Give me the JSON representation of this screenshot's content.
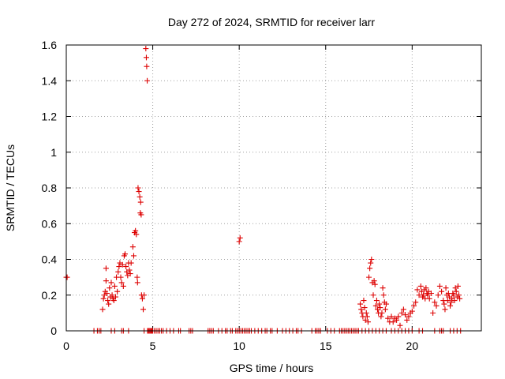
{
  "chart_data": {
    "type": "scatter",
    "title": "Day 272 of 2024, SRMTID for receiver larr",
    "xlabel": "GPS time / hours",
    "ylabel": "SRMTID / TECUs",
    "xlim": [
      0,
      24
    ],
    "ylim": [
      0,
      1.6
    ],
    "xticks": [
      0,
      5,
      10,
      15,
      20
    ],
    "xtick_labels": [
      "0",
      "5",
      "10",
      "15",
      "20"
    ],
    "yticks": [
      0,
      0.2,
      0.4,
      0.6,
      0.8,
      1,
      1.2,
      1.4,
      1.6
    ],
    "ytick_labels": [
      "0",
      "0.2",
      "0.4",
      "0.6",
      "0.8",
      "1",
      "1.2",
      "1.4",
      "1.6"
    ],
    "grid": true,
    "marker": "+",
    "marker_color": "#dd0000",
    "series": [
      {
        "name": "SRMTID",
        "x": [
          0.0,
          0.05,
          2.1,
          2.15,
          2.2,
          2.25,
          2.3,
          2.3,
          2.35,
          2.4,
          2.45,
          2.5,
          2.55,
          2.6,
          2.65,
          2.7,
          2.75,
          2.8,
          2.85,
          2.9,
          2.95,
          3.0,
          3.05,
          3.1,
          3.15,
          3.2,
          3.25,
          3.3,
          3.35,
          3.4,
          3.45,
          3.5,
          3.55,
          3.6,
          3.65,
          3.7,
          3.75,
          3.85,
          3.9,
          3.95,
          4.0,
          4.05,
          4.1,
          4.12,
          4.15,
          4.2,
          4.25,
          4.28,
          4.3,
          4.33,
          4.35,
          4.4,
          4.45,
          4.5,
          4.6,
          4.63,
          4.65,
          4.68,
          10.0,
          10.05,
          17.0,
          17.05,
          17.1,
          17.15,
          17.2,
          17.25,
          17.3,
          17.35,
          17.4,
          17.45,
          17.5,
          17.55,
          17.6,
          17.65,
          17.7,
          17.75,
          17.8,
          17.85,
          17.9,
          17.95,
          18.0,
          18.05,
          18.1,
          18.15,
          18.2,
          18.25,
          18.3,
          18.35,
          18.4,
          18.45,
          18.5,
          18.6,
          18.7,
          18.8,
          18.9,
          19.0,
          19.1,
          19.2,
          19.3,
          19.4,
          19.5,
          19.6,
          19.7,
          19.8,
          19.9,
          20.0,
          20.1,
          20.2,
          20.3,
          20.4,
          20.5,
          20.55,
          20.6,
          20.65,
          20.7,
          20.75,
          20.8,
          20.85,
          20.9,
          20.95,
          21.0,
          21.1,
          21.2,
          21.3,
          21.4,
          21.5,
          21.6,
          21.7,
          21.8,
          21.85,
          21.9,
          21.95,
          22.0,
          22.05,
          22.1,
          22.15,
          22.2,
          22.25,
          22.3,
          22.35,
          22.4,
          22.45,
          22.5,
          22.55,
          22.6,
          22.65,
          22.7,
          22.75,
          1.6,
          1.8,
          1.9,
          2.0,
          2.6,
          2.8,
          3.2,
          3.3,
          3.6,
          4.5,
          4.7,
          4.75,
          4.8,
          4.85,
          4.9,
          4.95,
          5.0,
          5.1,
          5.2,
          5.3,
          5.4,
          5.5,
          5.6,
          5.8,
          6.0,
          6.2,
          6.5,
          6.6,
          7.1,
          7.2,
          7.3,
          8.2,
          8.3,
          8.4,
          8.5,
          8.8,
          9.0,
          9.2,
          9.3,
          9.5,
          9.6,
          9.8,
          9.9,
          10.0,
          10.1,
          10.2,
          10.3,
          10.4,
          10.5,
          10.6,
          10.7,
          10.9,
          11.1,
          11.3,
          11.5,
          11.6,
          11.8,
          11.9,
          12.2,
          12.5,
          12.7,
          12.9,
          13.1,
          13.3,
          13.4,
          13.6,
          14.2,
          14.4,
          14.5,
          14.6,
          14.7,
          15.1,
          15.3,
          15.5,
          15.8,
          15.9,
          16.0,
          16.1,
          16.2,
          16.3,
          16.4,
          16.5,
          16.6,
          16.7,
          16.8,
          16.9,
          17.1,
          17.3,
          17.5,
          17.7,
          17.9,
          18.1,
          18.3,
          18.5,
          18.8,
          19.0,
          19.2,
          19.4,
          19.6,
          19.8,
          20.0,
          20.4,
          20.6,
          21.3,
          21.6,
          21.7,
          21.8,
          22.2,
          22.4,
          22.6,
          22.8
        ],
        "y": [
          0.3,
          0.3,
          0.12,
          0.18,
          0.2,
          0.22,
          0.35,
          0.28,
          0.21,
          0.17,
          0.15,
          0.24,
          0.19,
          0.27,
          0.2,
          0.18,
          0.17,
          0.25,
          0.19,
          0.3,
          0.22,
          0.33,
          0.36,
          0.38,
          0.3,
          0.27,
          0.37,
          0.25,
          0.42,
          0.43,
          0.36,
          0.33,
          0.31,
          0.38,
          0.34,
          0.32,
          0.38,
          0.47,
          0.42,
          0.55,
          0.56,
          0.54,
          0.3,
          0.27,
          0.8,
          0.78,
          0.75,
          0.66,
          0.72,
          0.65,
          0.2,
          0.18,
          0.12,
          0.2,
          1.58,
          1.53,
          1.48,
          1.4,
          0.5,
          0.52,
          0.15,
          0.12,
          0.1,
          0.08,
          0.17,
          0.13,
          0.06,
          0.1,
          0.08,
          0.05,
          0.3,
          0.35,
          0.38,
          0.4,
          0.27,
          0.2,
          0.28,
          0.26,
          0.14,
          0.17,
          0.12,
          0.1,
          0.15,
          0.13,
          0.08,
          0.1,
          0.24,
          0.2,
          0.16,
          0.12,
          0.15,
          0.07,
          0.05,
          0.08,
          0.05,
          0.07,
          0.06,
          0.08,
          0.03,
          0.1,
          0.12,
          0.09,
          0.06,
          0.08,
          0.1,
          0.11,
          0.14,
          0.16,
          0.23,
          0.2,
          0.25,
          0.22,
          0.19,
          0.2,
          0.23,
          0.18,
          0.24,
          0.21,
          0.2,
          0.22,
          0.18,
          0.21,
          0.1,
          0.16,
          0.14,
          0.2,
          0.25,
          0.22,
          0.17,
          0.15,
          0.12,
          0.24,
          0.2,
          0.17,
          0.21,
          0.19,
          0.14,
          0.16,
          0.18,
          0.21,
          0.2,
          0.17,
          0.24,
          0.22,
          0.19,
          0.25,
          0.2,
          0.18,
          0,
          0,
          0,
          0,
          0,
          0,
          0,
          0,
          0,
          0,
          0,
          0,
          0,
          0,
          0,
          0,
          0,
          0,
          0,
          0,
          0,
          0,
          0,
          0,
          0,
          0,
          0,
          0,
          0,
          0,
          0,
          0,
          0,
          0,
          0,
          0,
          0,
          0,
          0,
          0,
          0,
          0,
          0,
          0,
          0,
          0,
          0,
          0,
          0,
          0,
          0,
          0,
          0,
          0,
          0,
          0,
          0,
          0,
          0,
          0,
          0,
          0,
          0,
          0,
          0,
          0,
          0,
          0,
          0,
          0,
          0,
          0,
          0,
          0,
          0,
          0,
          0,
          0,
          0,
          0,
          0,
          0,
          0,
          0,
          0,
          0,
          0,
          0,
          0,
          0,
          0,
          0,
          0,
          0,
          0,
          0,
          0,
          0,
          0,
          0,
          0,
          0,
          0,
          0,
          0,
          0,
          0,
          0,
          0,
          0,
          0
        ]
      }
    ]
  }
}
